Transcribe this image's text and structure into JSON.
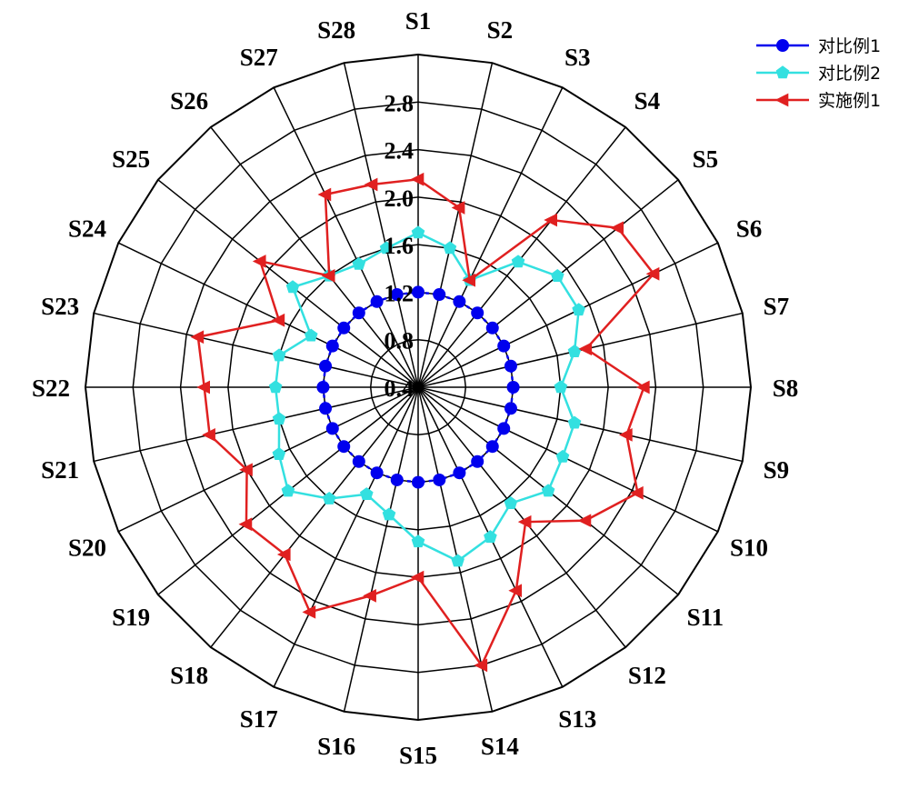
{
  "chart_data": {
    "type": "radar",
    "categories": [
      "S1",
      "S2",
      "S3",
      "S4",
      "S5",
      "S6",
      "S7",
      "S8",
      "S9",
      "S10",
      "S11",
      "S12",
      "S13",
      "S14",
      "S15",
      "S16",
      "S17",
      "S18",
      "S19",
      "S20",
      "S21",
      "S22",
      "S23",
      "S24",
      "S25",
      "S26",
      "S27",
      "S28"
    ],
    "radial_ticks": [
      "0.4",
      "0.8",
      "1.2",
      "1.6",
      "2.0",
      "2.4",
      "2.8"
    ],
    "rlim": [
      0.4,
      3.2
    ],
    "grid": true,
    "legend_position": "top-right",
    "series": [
      {
        "name": "对比例1",
        "color": "#0000ee",
        "marker": "circle",
        "values": [
          1.2,
          1.2,
          1.2,
          1.2,
          1.2,
          1.2,
          1.2,
          1.2,
          1.2,
          1.2,
          1.2,
          1.2,
          1.2,
          1.2,
          1.2,
          1.2,
          1.2,
          1.2,
          1.2,
          1.2,
          1.2,
          1.2,
          1.2,
          1.2,
          1.2,
          1.2,
          1.2,
          1.2
        ]
      },
      {
        "name": "对比例2",
        "color": "#33e0e0",
        "marker": "pentagon",
        "values": [
          1.7,
          1.6,
          1.4,
          1.75,
          1.9,
          1.9,
          1.75,
          1.6,
          1.75,
          1.75,
          1.8,
          1.65,
          1.8,
          1.9,
          1.7,
          1.5,
          1.4,
          1.6,
          1.8,
          1.7,
          1.6,
          1.6,
          1.6,
          1.4,
          1.75,
          1.6,
          1.55,
          1.6
        ]
      },
      {
        "name": "实施例1",
        "color": "#e02020",
        "marker": "triangle-left",
        "values": [
          2.15,
          1.95,
          1.4,
          2.2,
          2.55,
          2.6,
          1.85,
          2.3,
          2.2,
          2.45,
          2.2,
          1.85,
          2.3,
          2.8,
          2.0,
          2.2,
          2.5,
          2.2,
          2.25,
          2.0,
          2.2,
          2.2,
          2.3,
          1.7,
          2.1,
          1.6,
          2.2,
          2.15
        ]
      }
    ]
  }
}
